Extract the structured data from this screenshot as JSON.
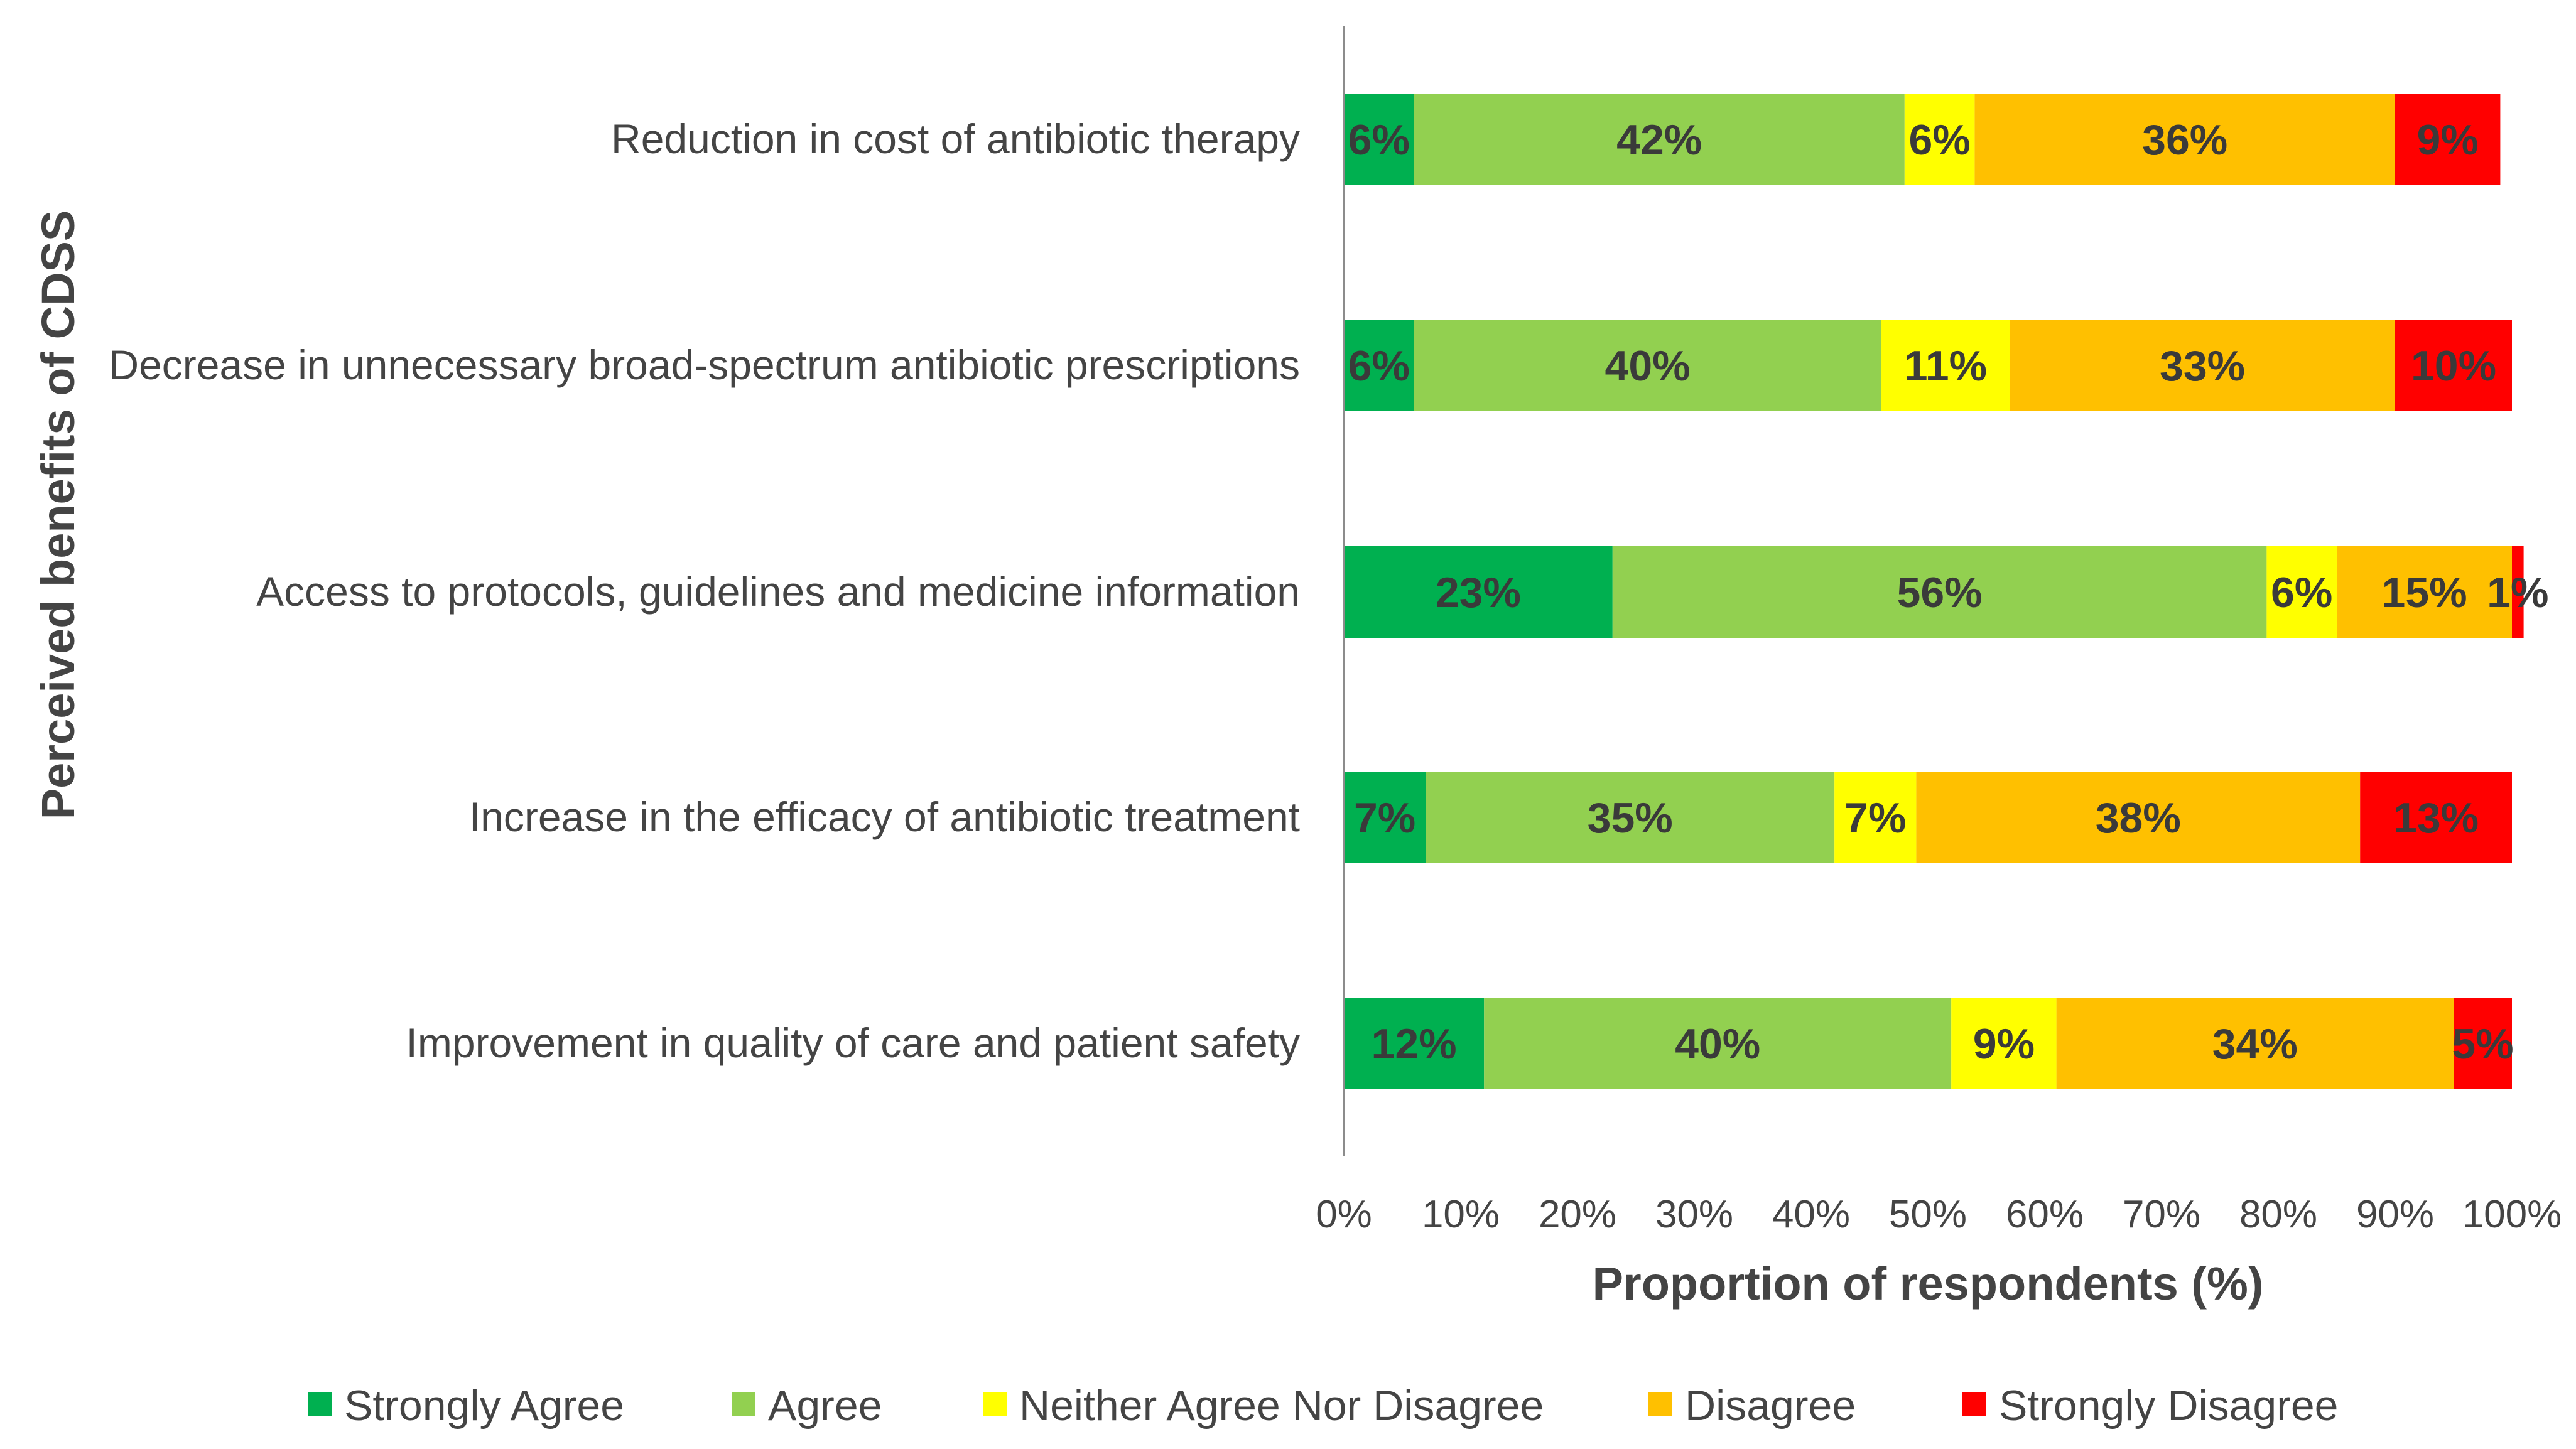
{
  "chart_data": {
    "type": "bar",
    "orientation": "horizontal",
    "stacked": true,
    "title": "",
    "xlabel": "Proportion of respondents (%)",
    "ylabel": "Perceived benefits of CDSS",
    "xlim": [
      0,
      100
    ],
    "x_ticks": [
      "0%",
      "10%",
      "20%",
      "30%",
      "40%",
      "50%",
      "60%",
      "70%",
      "80%",
      "90%",
      "100%"
    ],
    "categories": [
      "Reduction in cost of antibiotic therapy",
      "Decrease in unnecessary broad-spectrum antibiotic prescriptions",
      "Access to protocols, guidelines and medicine information",
      "Increase in the efficacy of antibiotic treatment",
      "Improvement in quality of care and patient safety"
    ],
    "series": [
      {
        "name": "Strongly Agree",
        "color": "#00b050",
        "values": [
          6,
          6,
          23,
          7,
          12
        ]
      },
      {
        "name": "Agree",
        "color": "#92d050",
        "values": [
          42,
          40,
          56,
          35,
          40
        ]
      },
      {
        "name": "Neither Agree Nor Disagree",
        "color": "#ffff00",
        "values": [
          6,
          11,
          6,
          7,
          9
        ]
      },
      {
        "name": "Disagree",
        "color": "#ffc000",
        "values": [
          36,
          33,
          15,
          38,
          34
        ]
      },
      {
        "name": "Strongly Disagree",
        "color": "#ff0000",
        "values": [
          9,
          10,
          1,
          13,
          5
        ]
      }
    ],
    "value_suffix": "%",
    "grid": false,
    "legend_position": "bottom"
  }
}
